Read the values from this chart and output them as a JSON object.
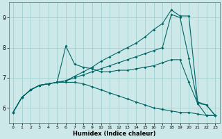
{
  "xlabel": "Humidex (Indice chaleur)",
  "ylabel": "",
  "bg_color": "#cce8e8",
  "line_color": "#006666",
  "grid_color": "#99cccc",
  "xlim": [
    -0.5,
    23.5
  ],
  "ylim": [
    5.5,
    9.5
  ],
  "xticks": [
    0,
    1,
    2,
    3,
    4,
    5,
    6,
    7,
    8,
    9,
    10,
    11,
    12,
    13,
    14,
    15,
    16,
    17,
    18,
    19,
    20,
    21,
    22,
    23
  ],
  "yticks": [
    6,
    7,
    8,
    9
  ],
  "line1_x": [
    0,
    1,
    2,
    3,
    4,
    5,
    6,
    7,
    8,
    9,
    10,
    11,
    12,
    13,
    14,
    15,
    16,
    17,
    18,
    19,
    20,
    21,
    22,
    23
  ],
  "line1_y": [
    5.85,
    6.35,
    6.6,
    6.75,
    6.8,
    6.85,
    6.9,
    7.05,
    7.2,
    7.35,
    7.55,
    7.7,
    7.85,
    8.0,
    8.15,
    8.35,
    8.6,
    8.8,
    9.25,
    9.05,
    9.05,
    6.2,
    6.1,
    5.75
  ],
  "line2_x": [
    0,
    1,
    2,
    3,
    4,
    5,
    6,
    7,
    8,
    9,
    10,
    11,
    12,
    13,
    14,
    15,
    16,
    17,
    18,
    19,
    20,
    21,
    22,
    23
  ],
  "line2_y": [
    5.85,
    6.35,
    6.6,
    6.75,
    6.8,
    6.85,
    8.05,
    7.45,
    7.35,
    7.3,
    7.2,
    7.2,
    7.25,
    7.25,
    7.3,
    7.35,
    7.4,
    7.5,
    7.6,
    7.6,
    6.85,
    6.15,
    5.75,
    5.75
  ],
  "line3_x": [
    0,
    1,
    2,
    3,
    4,
    5,
    6,
    7,
    8,
    9,
    10,
    11,
    12,
    13,
    14,
    15,
    16,
    17,
    18,
    19,
    20,
    21,
    22,
    23
  ],
  "line3_y": [
    5.85,
    6.35,
    6.6,
    6.75,
    6.8,
    6.85,
    6.9,
    7.0,
    7.1,
    7.2,
    7.3,
    7.4,
    7.5,
    7.6,
    7.7,
    7.8,
    7.9,
    8.0,
    9.1,
    9.0,
    7.65,
    6.15,
    6.1,
    5.75
  ],
  "line4_x": [
    0,
    1,
    2,
    3,
    4,
    5,
    6,
    7,
    8,
    9,
    10,
    11,
    12,
    13,
    14,
    15,
    16,
    17,
    18,
    19,
    20,
    21,
    22,
    23
  ],
  "line4_y": [
    5.85,
    6.35,
    6.6,
    6.75,
    6.8,
    6.85,
    6.85,
    6.85,
    6.8,
    6.7,
    6.6,
    6.5,
    6.4,
    6.3,
    6.2,
    6.1,
    6.0,
    5.95,
    5.9,
    5.85,
    5.85,
    5.8,
    5.75,
    5.75
  ]
}
